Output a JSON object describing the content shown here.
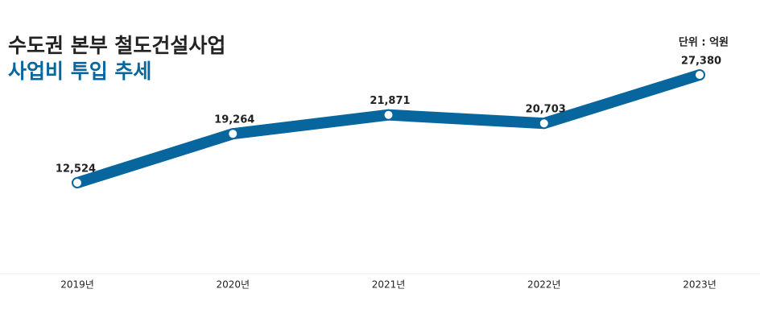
{
  "chart_data": {
    "type": "line",
    "title": "수도권 본부 철도건설사업",
    "subtitle": "사업비 투입 추세",
    "unit": "단위 : 억원",
    "categories": [
      "2019년",
      "2020년",
      "2021년",
      "2022년",
      "2023년"
    ],
    "values": [
      12524,
      19264,
      21871,
      20703,
      27380
    ],
    "value_labels": [
      "12,524",
      "19,264",
      "21,871",
      "20,703",
      "27,380"
    ],
    "color": "#08669e"
  }
}
